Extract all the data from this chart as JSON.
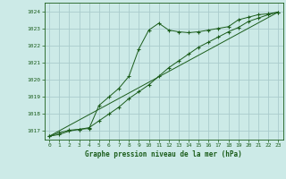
{
  "background_color": "#cceae7",
  "grid_color": "#aacccc",
  "line_color": "#1a5c1a",
  "marker_color": "#1a5c1a",
  "title": "Graphe pression niveau de la mer (hPa)",
  "xlim": [
    -0.5,
    23.5
  ],
  "ylim": [
    1016.5,
    1024.5
  ],
  "yticks": [
    1017,
    1018,
    1019,
    1020,
    1021,
    1022,
    1023,
    1024
  ],
  "xticks": [
    0,
    1,
    2,
    3,
    4,
    5,
    6,
    7,
    8,
    9,
    10,
    11,
    12,
    13,
    14,
    15,
    16,
    17,
    18,
    19,
    20,
    21,
    22,
    23
  ],
  "series1_x": [
    0,
    1,
    2,
    3,
    4,
    5,
    6,
    7,
    8,
    9,
    10,
    11,
    12,
    13,
    14,
    15,
    16,
    17,
    18,
    19,
    20,
    21,
    22,
    23
  ],
  "series1_y": [
    1016.7,
    1016.8,
    1017.0,
    1017.1,
    1017.15,
    1018.5,
    1019.0,
    1019.5,
    1020.2,
    1021.8,
    1022.9,
    1023.3,
    1022.9,
    1022.8,
    1022.75,
    1022.8,
    1022.9,
    1023.0,
    1023.1,
    1023.5,
    1023.65,
    1023.8,
    1023.85,
    1023.95
  ],
  "series2_x": [
    0,
    1,
    2,
    3,
    4,
    5,
    6,
    7,
    8,
    9,
    10,
    11,
    12,
    13,
    14,
    15,
    16,
    17,
    18,
    19,
    20,
    21,
    22,
    23
  ],
  "series2_y": [
    1016.7,
    1016.9,
    1017.05,
    1017.1,
    1017.2,
    1017.6,
    1018.0,
    1018.4,
    1018.9,
    1019.3,
    1019.7,
    1020.2,
    1020.7,
    1021.1,
    1021.5,
    1021.9,
    1022.2,
    1022.5,
    1022.8,
    1023.05,
    1023.4,
    1023.6,
    1023.8,
    1023.95
  ],
  "series3_x": [
    0,
    23
  ],
  "series3_y": [
    1016.7,
    1023.95
  ],
  "title_fontsize": 5.5,
  "tick_fontsize": 4.5
}
